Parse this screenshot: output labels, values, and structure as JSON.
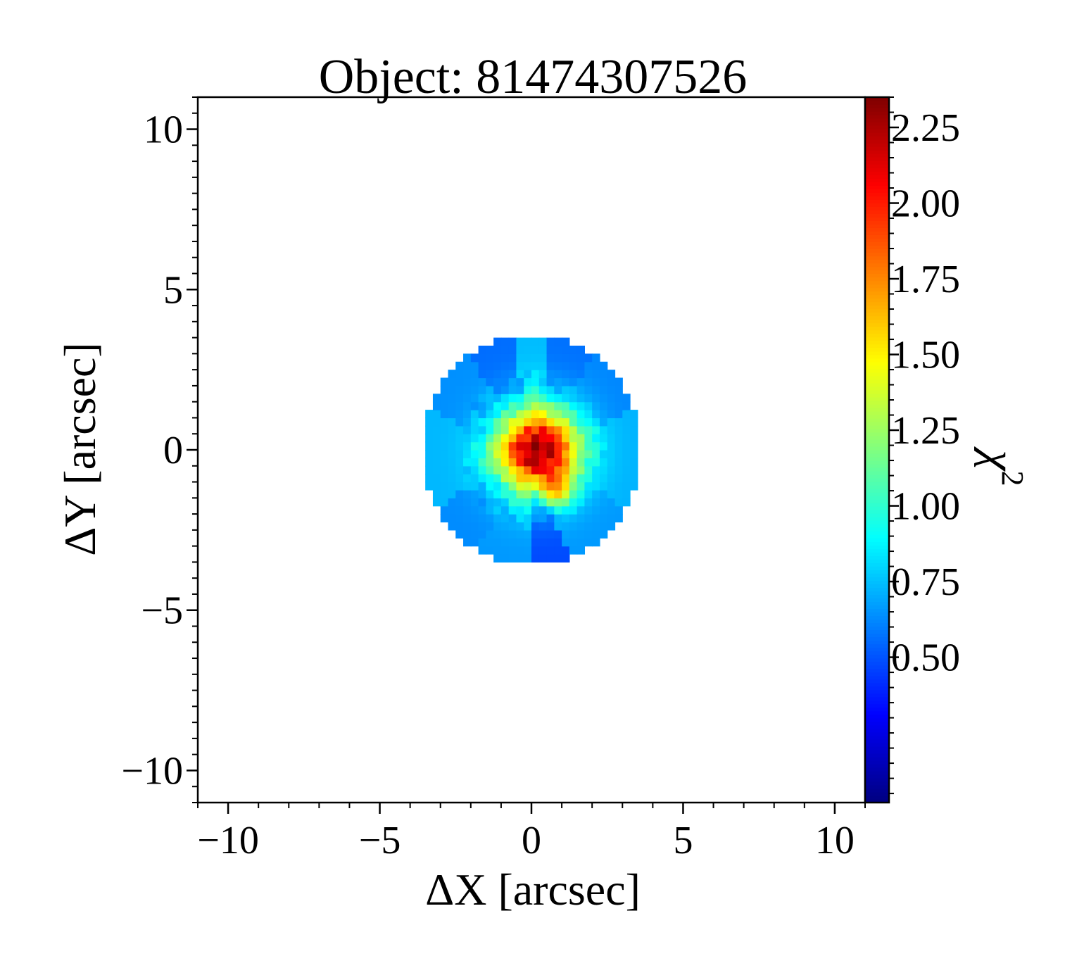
{
  "chart_data": {
    "type": "heatmap",
    "title": "Object: 81474307526",
    "xlabel": "ΔX [arcsec]",
    "ylabel": "ΔY [arcsec]",
    "xlim": [
      -11,
      11
    ],
    "ylim": [
      -11,
      11
    ],
    "xticks": [
      -10,
      -5,
      0,
      5,
      10
    ],
    "xtick_labels": [
      "−10",
      "−5",
      "0",
      "5",
      "10"
    ],
    "yticks": [
      -10,
      -5,
      0,
      5,
      10
    ],
    "ytick_labels": [
      "−10",
      "−5",
      "0",
      "5",
      "10"
    ],
    "grid": false,
    "colorbar": {
      "label": "χ²",
      "label_base": "χ",
      "label_exp": "2",
      "min": 0.02,
      "max": 2.35,
      "colormap": "jet",
      "ticks": [
        0.5,
        0.75,
        1.0,
        1.25,
        1.5,
        1.75,
        2.0,
        2.25
      ],
      "tick_labels": [
        "0.50",
        "0.75",
        "1.00",
        "1.25",
        "1.50",
        "1.75",
        "2.00",
        "2.25"
      ]
    },
    "pixel_scale_arcsec": 0.25,
    "field_center": [
      0.0,
      0.0
    ],
    "field_radius_arcsec": 3.6,
    "outer_sectors": [
      {
        "angle_from_deg": -30,
        "angle_to_deg": 20,
        "value": 0.72
      },
      {
        "angle_from_deg": 20,
        "angle_to_deg": 55,
        "value": 0.62
      },
      {
        "angle_from_deg": 55,
        "angle_to_deg": 80,
        "value": 0.57
      },
      {
        "angle_from_deg": 80,
        "angle_to_deg": 100,
        "value": 0.74
      },
      {
        "angle_from_deg": 100,
        "angle_to_deg": 125,
        "value": 0.56
      },
      {
        "angle_from_deg": 125,
        "angle_to_deg": 160,
        "value": 0.64
      },
      {
        "angle_from_deg": 160,
        "angle_to_deg": 210,
        "value": 0.73
      },
      {
        "angle_from_deg": 210,
        "angle_to_deg": 240,
        "value": 0.63
      },
      {
        "angle_from_deg": 240,
        "angle_to_deg": 270,
        "value": 0.66
      },
      {
        "angle_from_deg": 270,
        "angle_to_deg": 290,
        "value": 0.48
      },
      {
        "angle_from_deg": 290,
        "angle_to_deg": 330,
        "value": 0.66
      }
    ],
    "core": {
      "peak_x": 0.2,
      "peak_y": 0.0,
      "peak_value": 2.3,
      "width_arcsec": 0.95,
      "secondary_peak_x": 0.9,
      "secondary_peak_y": -1.2,
      "secondary_peak_value": 1.6
    },
    "colorbar_range_reached": [
      0.48,
      2.3
    ]
  }
}
